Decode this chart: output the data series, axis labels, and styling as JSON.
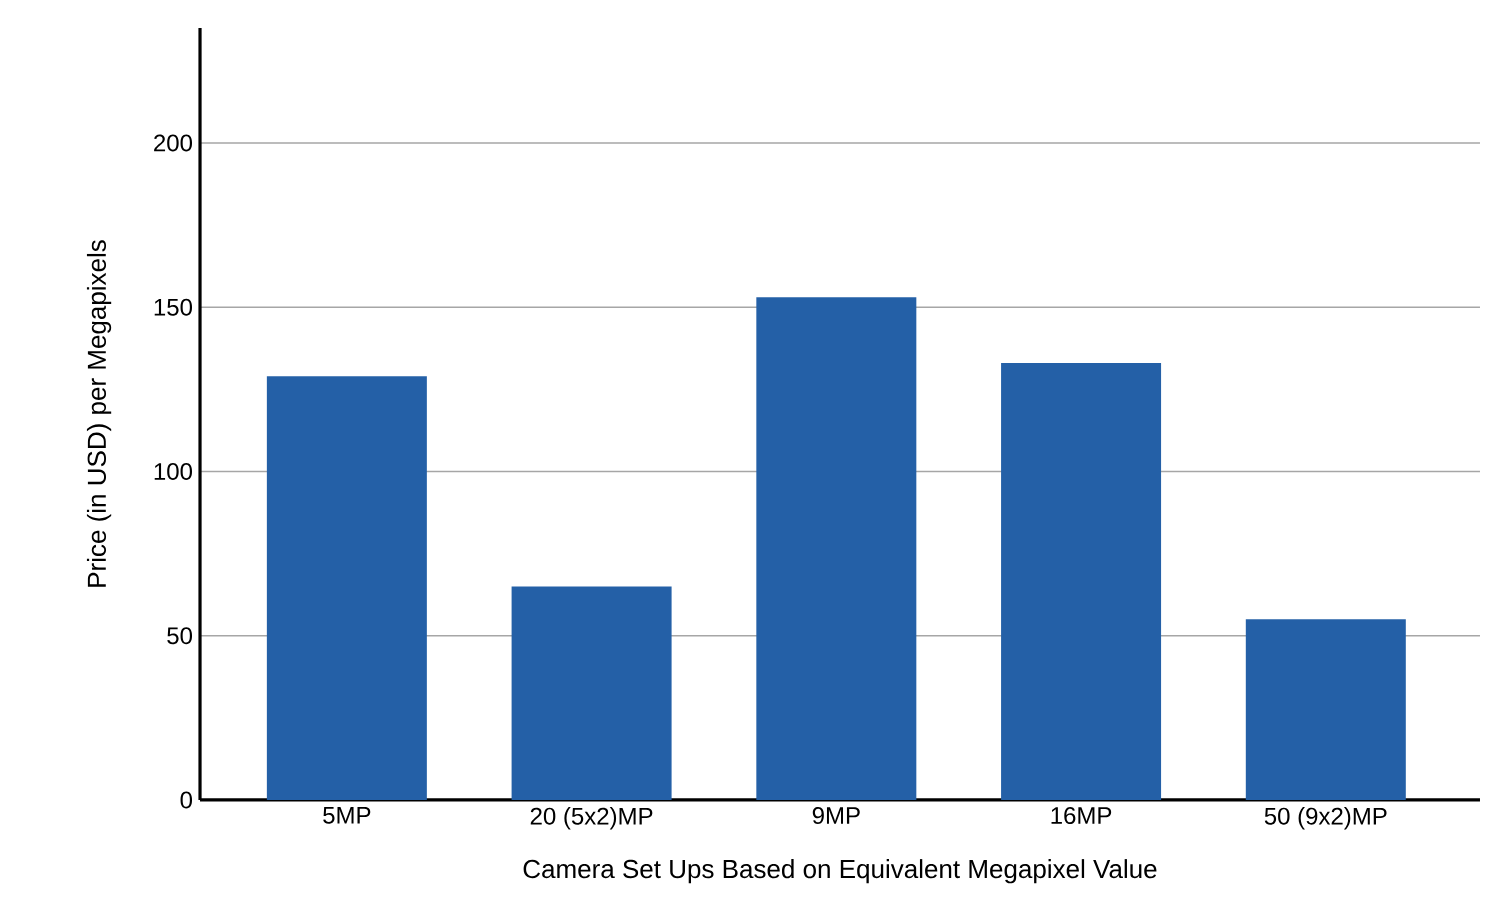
{
  "chart_data": {
    "type": "bar",
    "xlabel": "Camera Set Ups Based on Equivalent Megapixel Value",
    "ylabel": "Price (in USD) per Megapixels",
    "categories": [
      "5MP",
      "20 (5x2)MP",
      "9MP",
      "16MP",
      "50 (9x2)MP"
    ],
    "values": [
      129,
      65,
      153,
      133,
      55
    ],
    "color": "#2460a7",
    "ylim": [
      0,
      235
    ],
    "yticks": [
      0,
      50,
      100,
      150,
      200
    ],
    "grid": "y"
  }
}
